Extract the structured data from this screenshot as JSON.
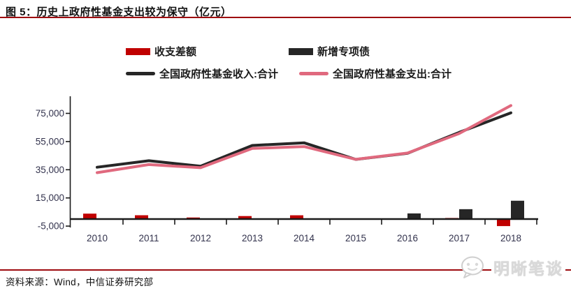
{
  "header": {
    "title": "图 5：历史上政府性基金支出较为保守（亿元）"
  },
  "footer": {
    "source": "资料来源：Wind，中信证券研究部",
    "watermark": "明晰笔谈"
  },
  "colors": {
    "rule_red": "#9e0b0f",
    "deficit_bar": "#c00000",
    "bond_bar": "#262626",
    "income_line": "#262626",
    "expense_line": "#e0697e",
    "axis": "#1a1a1a",
    "tick_label": "#33334d",
    "watermark_gray": "#d9d9d9"
  },
  "chart_data": {
    "type": "bar",
    "subtype": "combo-bar-line",
    "title": "历史上政府性基金支出较为保守（亿元）",
    "unit": "亿元",
    "categories": [
      "2010",
      "2011",
      "2012",
      "2013",
      "2014",
      "2015",
      "2016",
      "2017",
      "2018"
    ],
    "series": [
      {
        "name": "收支差额",
        "type": "bar",
        "color": "#c00000",
        "values": [
          3844,
          2701,
          1099,
          2123,
          2669,
          -34,
          -232,
          762,
          -5157
        ]
      },
      {
        "name": "新增专项债",
        "type": "bar",
        "color": "#262626",
        "values": [
          0,
          0,
          0,
          0,
          0,
          0,
          4000,
          7000,
          13000
        ]
      },
      {
        "name": "全国政府性基金收入:合计",
        "type": "line",
        "color": "#262626",
        "values": [
          36785,
          41363,
          37517,
          52239,
          54093,
          42330,
          46619,
          61462,
          75405
        ]
      },
      {
        "name": "全国政府性基金支出:合计",
        "type": "line",
        "color": "#e0697e",
        "values": [
          32941,
          38662,
          36418,
          50116,
          51424,
          42364,
          46851,
          60700,
          80562
        ]
      }
    ],
    "yticks": [
      {
        "label": "75,000",
        "value": 75000
      },
      {
        "label": "55,000",
        "value": 55000
      },
      {
        "label": "35,000",
        "value": 35000
      },
      {
        "label": "15,000",
        "value": 15000
      },
      {
        "label": "-5,000",
        "value": -5000
      }
    ],
    "ylim": [
      -5000,
      85000
    ],
    "xlabel": "",
    "ylabel": "",
    "grid": false,
    "legend_position": "top"
  }
}
